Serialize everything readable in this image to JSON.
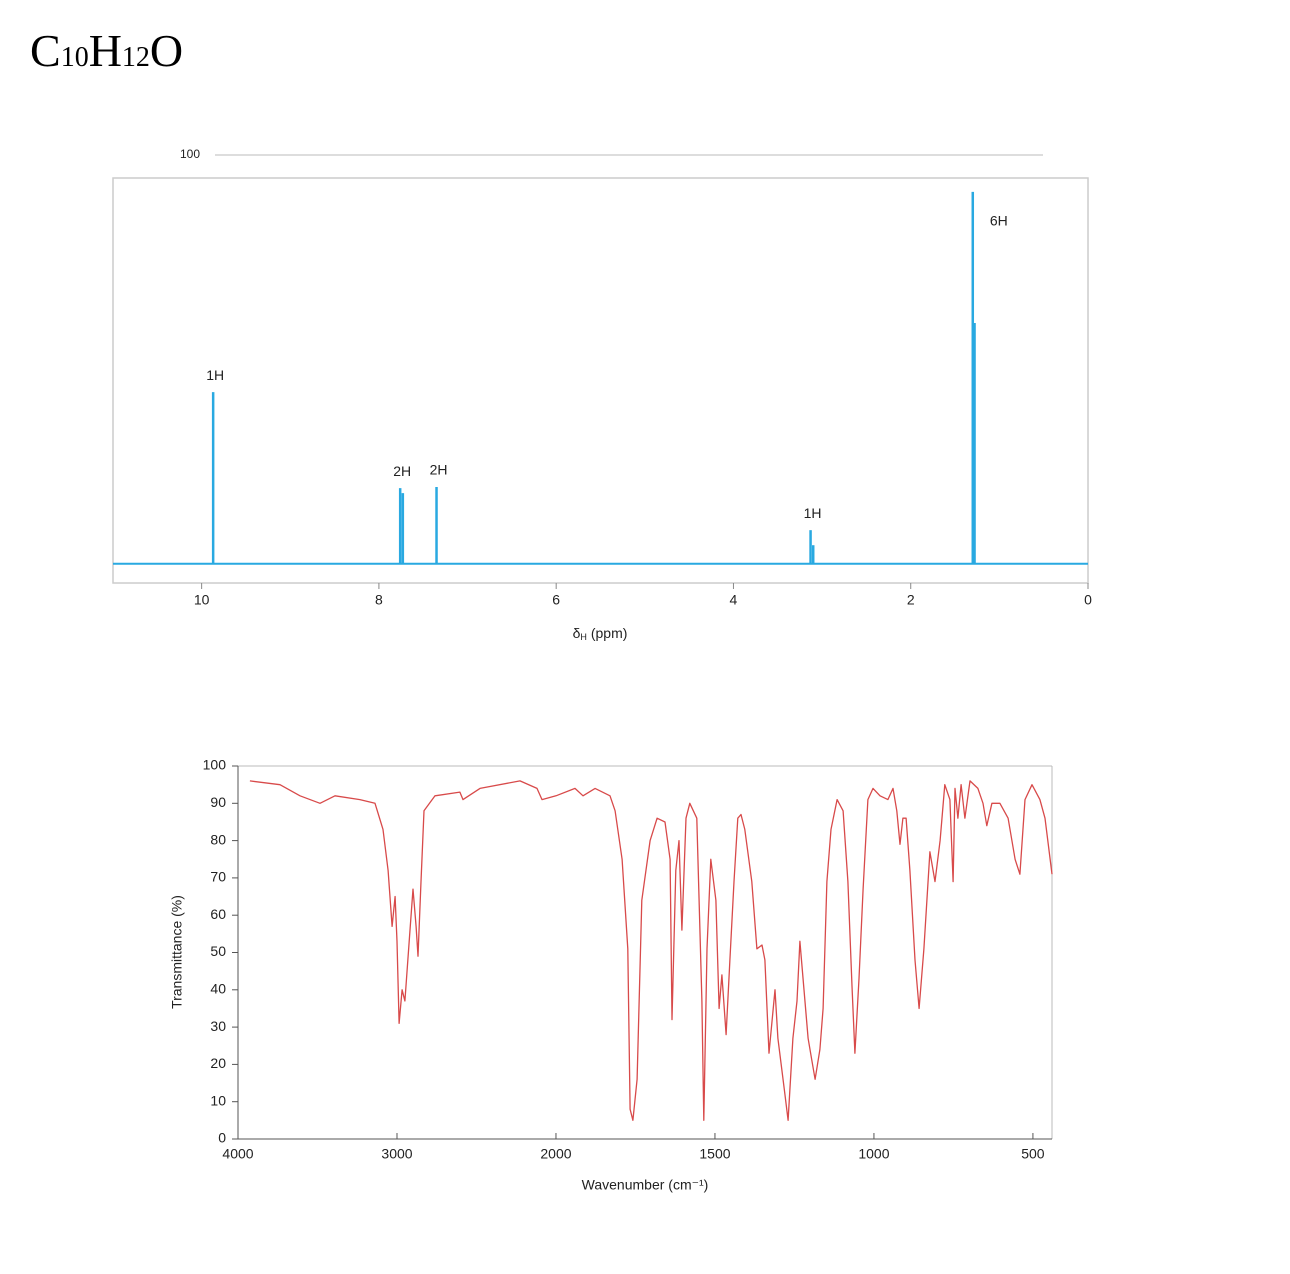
{
  "heading": {
    "formula": [
      "C",
      "10",
      "H",
      "12",
      "O"
    ]
  },
  "chart_data": [
    {
      "type": "stem",
      "cropped_label": "100",
      "xlabel": [
        "δ",
        "H",
        "(ppm)"
      ],
      "x": [
        9.87,
        7.76,
        7.73,
        7.35,
        3.13,
        3.1,
        1.3,
        1.28
      ],
      "values": [
        44.5,
        19.6,
        18.3,
        19.9,
        8.7,
        4.8,
        96.4,
        62.4
      ],
      "peak_labels": [
        "1H",
        "2H",
        null,
        "2H",
        "1H",
        null,
        "6H",
        null
      ],
      "color": "#29a9e1",
      "xlim": [
        11,
        0
      ],
      "ylim": [
        -5,
        100
      ],
      "xticks": [
        10,
        8,
        6,
        4,
        2,
        0
      ]
    },
    {
      "type": "line",
      "xlabel": "Wavenumber (cm⁻¹)",
      "ylabel": "Transmittance (%)",
      "color": "#d84a4a",
      "xlim": [
        4000,
        440
      ],
      "xbreak": 2000,
      "xbreak_factor": 2,
      "xticks": [
        4000,
        3000,
        2000,
        1500,
        1000,
        500
      ],
      "ylim": [
        0,
        100
      ],
      "yticks": [
        0,
        10,
        20,
        30,
        40,
        50,
        60,
        70,
        80,
        90,
        100
      ],
      "x": [
        3925,
        3736,
        3610,
        3484,
        3390,
        3233,
        3138,
        3088,
        3056,
        3031,
        3012,
        3000,
        2987,
        2968,
        2950,
        2918,
        2899,
        2880,
        2868,
        2849,
        2830,
        2761,
        2604,
        2585,
        2478,
        2226,
        2119,
        2088,
        2000,
        1940,
        1915,
        1877,
        1830,
        1814,
        1792,
        1774,
        1767,
        1758,
        1745,
        1730,
        1704,
        1682,
        1657,
        1641,
        1635,
        1623,
        1613,
        1604,
        1591,
        1579,
        1557,
        1541,
        1535,
        1525,
        1513,
        1497,
        1487,
        1478,
        1465,
        1453,
        1440,
        1428,
        1418,
        1406,
        1384,
        1368,
        1352,
        1343,
        1330,
        1311,
        1302,
        1280,
        1270,
        1255,
        1242,
        1233,
        1220,
        1207,
        1195,
        1185,
        1170,
        1160,
        1148,
        1135,
        1116,
        1097,
        1082,
        1069,
        1060,
        1047,
        1034,
        1019,
        1003,
        981,
        956,
        940,
        928,
        918,
        909,
        899,
        887,
        871,
        858,
        843,
        824,
        808,
        792,
        777,
        761,
        751,
        745,
        736,
        726,
        714,
        698,
        673,
        657,
        645,
        629,
        604,
        578,
        556,
        541,
        525,
        503,
        478,
        462,
        440
      ],
      "values": [
        96,
        95,
        92,
        90,
        92,
        91,
        90,
        83,
        72,
        57,
        65,
        53,
        31,
        40,
        37,
        56,
        67,
        57,
        49,
        69,
        88,
        92,
        93,
        91,
        94,
        96,
        94,
        91,
        92,
        94,
        92,
        94,
        92,
        88,
        75,
        51,
        8,
        5,
        16,
        64,
        80,
        86,
        85,
        75,
        32,
        72,
        80,
        56,
        86,
        90,
        86,
        37,
        5,
        51,
        75,
        64,
        35,
        44,
        28,
        48,
        69,
        86,
        87,
        83,
        69,
        51,
        52,
        48,
        23,
        40,
        27,
        12,
        5,
        27,
        37,
        53,
        40,
        27,
        21,
        16,
        24,
        35,
        69,
        83,
        91,
        88,
        69,
        41,
        23,
        43,
        67,
        91,
        94,
        92,
        91,
        94,
        88,
        79,
        86,
        86,
        72,
        48,
        35,
        51,
        77,
        69,
        80,
        95,
        91,
        69,
        94,
        86,
        95,
        86,
        96,
        94,
        90,
        84,
        90,
        90,
        86,
        75,
        71,
        91,
        95,
        91,
        86,
        71
      ]
    }
  ]
}
